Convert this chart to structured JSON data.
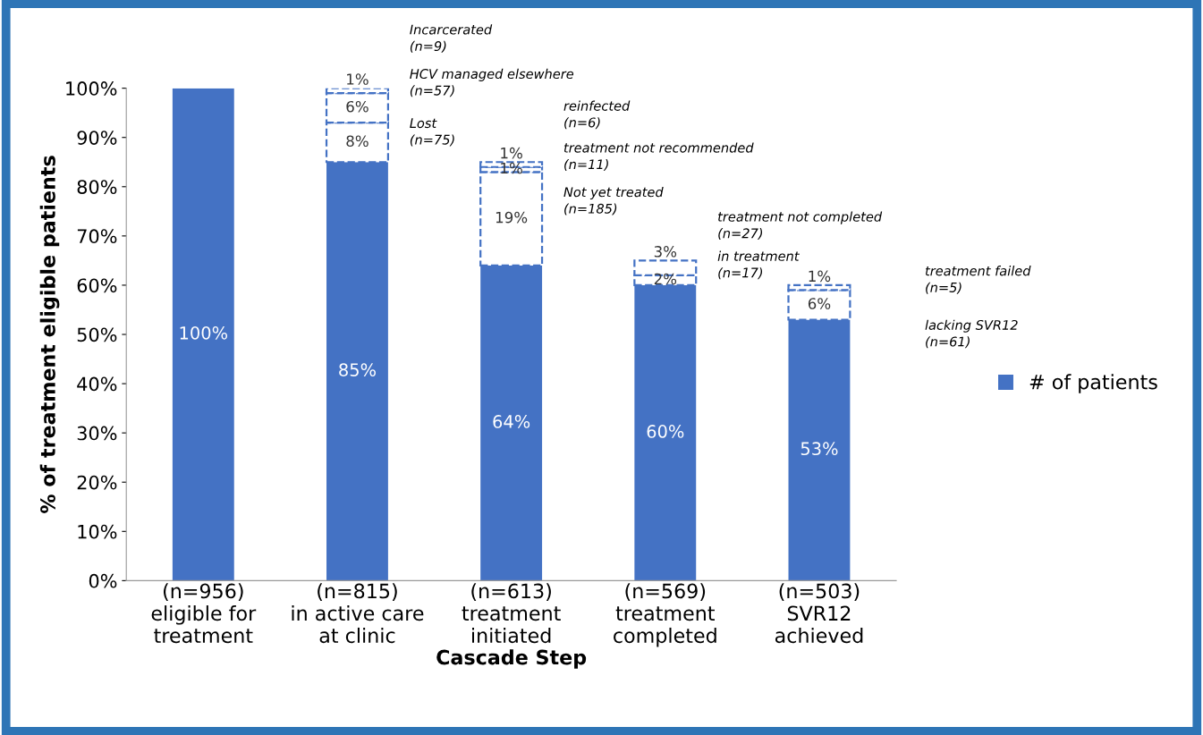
{
  "chart_data": {
    "type": "bar",
    "stacked": true,
    "xlabel": "Cascade Step",
    "ylabel": "% of treatment eligible patients",
    "categories": [
      "(n=956)\neligible for\ntreatment",
      "(n=815)\nin active care\nat clinic",
      "(n=613)\ntreatment\ninitiated",
      "(n=569)\ntreatment\ncompleted",
      "(n=503)\nSVR12\nachieved"
    ],
    "series": [
      {
        "name": "# of patients",
        "color": "#4472c4",
        "values": [
          100,
          85,
          64,
          60,
          53
        ],
        "value_labels": [
          "100%",
          "85%",
          "64%",
          "60%",
          "53%"
        ]
      },
      {
        "color": "#4472c4",
        "line_style": "dashed",
        "values": [
          null,
          8,
          19,
          2,
          6
        ],
        "value_labels": [
          null,
          "8%",
          "19%",
          "2%",
          "6%"
        ]
      },
      {
        "color": "#4472c4",
        "line_style": "dashed",
        "values": [
          null,
          6,
          1,
          3,
          1
        ],
        "value_labels": [
          null,
          "6%",
          "1%",
          "3%",
          "1%"
        ]
      },
      {
        "color": "#4472c4",
        "line_style": "dashed",
        "values": [
          null,
          1,
          1,
          null,
          null
        ],
        "value_labels": [
          null,
          "1%",
          "1%",
          null,
          null
        ]
      }
    ],
    "ylim": [
      0,
      100
    ],
    "yticks": [
      {
        "value": 0,
        "label": "0%"
      },
      {
        "value": 10,
        "label": "10%"
      },
      {
        "value": 20,
        "label": "20%"
      },
      {
        "value": 30,
        "label": "30%"
      },
      {
        "value": 40,
        "label": "40%"
      },
      {
        "value": 50,
        "label": "50%"
      },
      {
        "value": 60,
        "label": "60%"
      },
      {
        "value": 70,
        "label": "70%"
      },
      {
        "value": 80,
        "label": "80%"
      },
      {
        "value": 90,
        "label": "90%"
      },
      {
        "value": 100,
        "label": "100%"
      }
    ],
    "annotations": [
      "Incarcerated\n(n=9)",
      "HCV managed elsewhere\n(n=57)",
      "Lost\n(n=75)",
      "reinfected\n(n=6)",
      "treatment not recommended\n(n=11)",
      "Not yet treated\n(n=185)",
      "treatment not completed\n(n=27)",
      "in treatment\n(n=17)",
      "treatment failed\n(n=5)",
      "lacking SVR12\n(n=61)"
    ],
    "legend": "right",
    "grid": false
  }
}
